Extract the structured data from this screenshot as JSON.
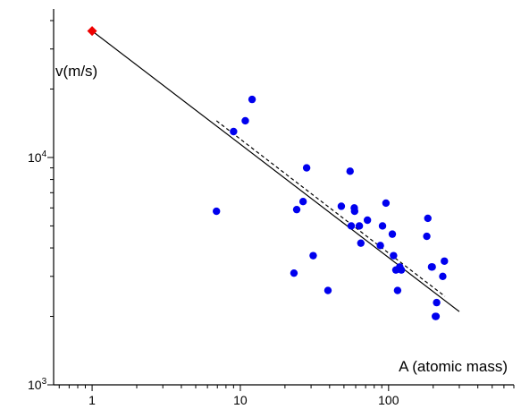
{
  "chart_data": {
    "type": "scatter",
    "title": "",
    "xlabel": "A (atomic mass)",
    "ylabel": "v(m/s)",
    "xscale": "log",
    "yscale": "log",
    "xlim": [
      0.55,
      700
    ],
    "ylim": [
      1000,
      45000
    ],
    "x_ticks": [
      {
        "value": 1,
        "label": "1"
      },
      {
        "value": 10,
        "label": "10"
      },
      {
        "value": 100,
        "label": "100"
      }
    ],
    "y_ticks": [
      {
        "value": 1000,
        "base": "10",
        "exp": "3"
      },
      {
        "value": 10000,
        "base": "10",
        "exp": "4"
      }
    ],
    "grid": false,
    "colors": {
      "points": "#0000ee",
      "highlight": "#ee0000",
      "fit": "#000000"
    },
    "highlight_point": {
      "x": 1,
      "y": 36000,
      "marker": "diamond"
    },
    "series": [
      {
        "marker": "circle",
        "points": [
          {
            "x": 6.9,
            "y": 5800
          },
          {
            "x": 9,
            "y": 13000
          },
          {
            "x": 10.8,
            "y": 14500
          },
          {
            "x": 12,
            "y": 18000
          },
          {
            "x": 23,
            "y": 3100
          },
          {
            "x": 24,
            "y": 5900
          },
          {
            "x": 26.5,
            "y": 6400
          },
          {
            "x": 28,
            "y": 9000
          },
          {
            "x": 31,
            "y": 3700
          },
          {
            "x": 39,
            "y": 2600
          },
          {
            "x": 48,
            "y": 6100
          },
          {
            "x": 55,
            "y": 8700
          },
          {
            "x": 56,
            "y": 5000
          },
          {
            "x": 58.7,
            "y": 6000
          },
          {
            "x": 59,
            "y": 5800
          },
          {
            "x": 63.5,
            "y": 5000
          },
          {
            "x": 65,
            "y": 4200
          },
          {
            "x": 72,
            "y": 5300
          },
          {
            "x": 88,
            "y": 4100
          },
          {
            "x": 91,
            "y": 5000
          },
          {
            "x": 96,
            "y": 6300
          },
          {
            "x": 106,
            "y": 4600
          },
          {
            "x": 108,
            "y": 3700
          },
          {
            "x": 112,
            "y": 3200
          },
          {
            "x": 115,
            "y": 2600
          },
          {
            "x": 119,
            "y": 3300
          },
          {
            "x": 122,
            "y": 3200
          },
          {
            "x": 181,
            "y": 4500
          },
          {
            "x": 184,
            "y": 5400
          },
          {
            "x": 195,
            "y": 3300
          },
          {
            "x": 197,
            "y": 3300
          },
          {
            "x": 207,
            "y": 2000
          },
          {
            "x": 209,
            "y": 2000
          },
          {
            "x": 211,
            "y": 2300
          },
          {
            "x": 232,
            "y": 3000
          },
          {
            "x": 238,
            "y": 3500
          }
        ]
      }
    ],
    "fit_lines": [
      {
        "style": "solid",
        "x": [
          1,
          300
        ],
        "y": [
          36000,
          2100
        ]
      },
      {
        "style": "dashed",
        "x": [
          6.9,
          240
        ],
        "y": [
          14500,
          2450
        ]
      }
    ]
  }
}
